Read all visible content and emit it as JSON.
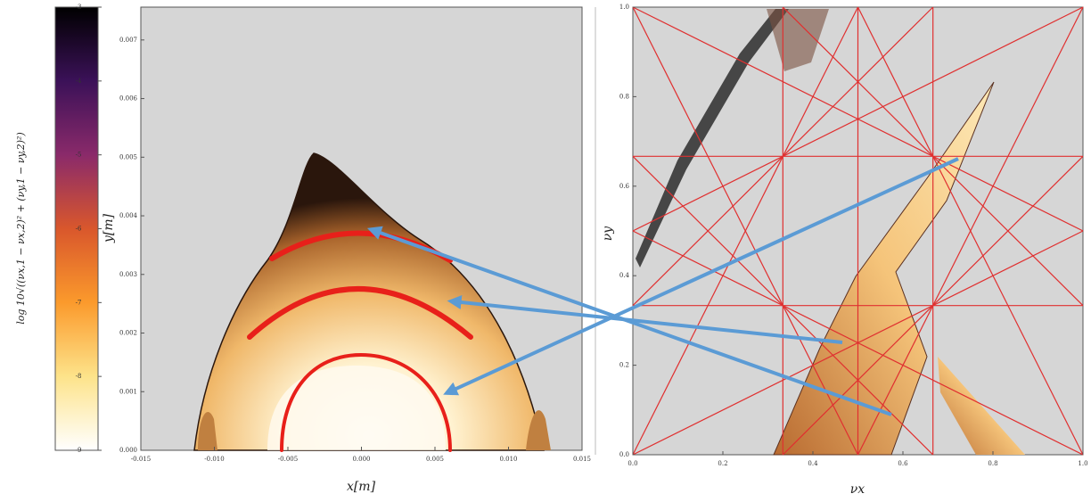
{
  "chart_data": [
    {
      "type": "colorbar",
      "ylabel": "log 10√((νx,1 − νx,2)² + (νy,1 − νy,2)²)",
      "ylim": [
        -9,
        -3
      ],
      "yticks": [
        -9,
        -8,
        -7,
        -6,
        -5,
        -4,
        -3
      ],
      "colormap": [
        "#ffffff",
        "#fde38a",
        "#fb9a2c",
        "#d9572c",
        "#8a2a6a",
        "#3b1158",
        "#000000"
      ]
    },
    {
      "type": "map",
      "xlabel": "x[m]",
      "ylabel": "y[m]",
      "xlim": [
        -0.015,
        0.015
      ],
      "xticks": [
        {
          "value": -0.015,
          "label": "-0.015"
        },
        {
          "value": -0.01,
          "label": "-0.010"
        },
        -0.005,
        {
          "value": 0,
          "label": "0.000"
        },
        0.005,
        {
          "value": 0.01,
          "label": "0.010"
        },
        0.015
      ],
      "ylim": [
        0,
        0.00756
      ],
      "yticks": [
        {
          "value": 0,
          "label": "0.000"
        },
        0.001,
        0.002,
        0.003,
        0.004,
        0.005,
        0.006,
        0.007
      ]
    },
    {
      "type": "tune-diagram",
      "xlabel": "νx",
      "ylabel": "νy",
      "xlim": [
        0,
        1
      ],
      "xticks": [
        {
          "value": 0,
          "label": "0.0"
        },
        0.2,
        0.4,
        0.6,
        0.8,
        {
          "value": 1,
          "label": "1.0"
        }
      ],
      "ylim": [
        0,
        1
      ],
      "yticks": [
        {
          "value": 0,
          "label": "0.0"
        },
        0.2,
        0.4,
        0.6,
        0.8,
        {
          "value": 1,
          "label": "1.0"
        }
      ]
    }
  ]
}
